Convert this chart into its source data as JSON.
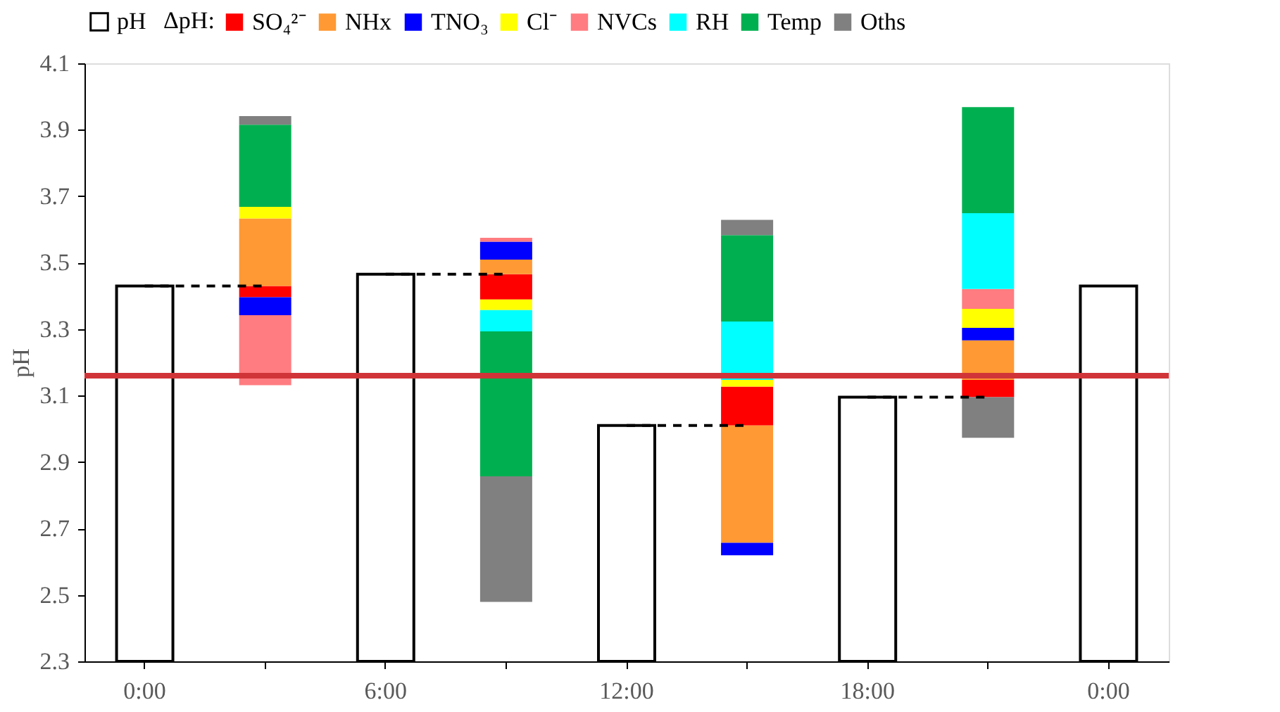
{
  "chart_data": {
    "type": "bar",
    "ylabel": "pH",
    "legend_title": "ΔpH:",
    "categories": [
      "0:00",
      null,
      "6:00",
      null,
      "12:00",
      null,
      "18:00",
      null,
      "0:00"
    ],
    "series": [
      {
        "name": "pH",
        "color": "#ffffff",
        "values": [
          3.43,
          null,
          3.465,
          null,
          3.01,
          null,
          3.095,
          null,
          3.43
        ]
      },
      {
        "name": "SO₄²⁻",
        "color": "#ff0000",
        "values": [
          null,
          -0.034,
          null,
          -0.076,
          null,
          0.117,
          null,
          0.052,
          null
        ],
        "base": [
          null,
          3.43,
          null,
          3.465,
          null,
          3.01,
          null,
          3.095,
          null
        ]
      },
      {
        "name": "NHx",
        "color": "#ff9933",
        "values": [
          null,
          0.203,
          null,
          0.044,
          null,
          -0.353,
          null,
          0.119,
          null
        ],
        "base": [
          null,
          3.43,
          null,
          3.465,
          null,
          3.01,
          null,
          3.147,
          null
        ]
      },
      {
        "name": "TNO₃",
        "color": "#0000ff",
        "values": [
          null,
          -0.054,
          null,
          0.054,
          null,
          -0.038,
          null,
          0.038,
          null
        ],
        "base": [
          null,
          3.396,
          null,
          3.509,
          null,
          2.657,
          null,
          3.266,
          null
        ]
      },
      {
        "name": "Cl⁻",
        "color": "#ffff00",
        "values": [
          null,
          0.035,
          null,
          -0.032,
          null,
          0.02,
          null,
          0.057,
          null
        ],
        "base": [
          null,
          3.633,
          null,
          3.389,
          null,
          3.127,
          null,
          3.304,
          null
        ]
      },
      {
        "name": "NVCs",
        "color": "#ff7c80",
        "values": [
          null,
          -0.211,
          null,
          0.012,
          null,
          null,
          null,
          0.06,
          null
        ],
        "base": [
          null,
          3.342,
          null,
          3.563,
          null,
          null,
          null,
          3.361,
          null
        ]
      },
      {
        "name": "RH",
        "color": "#00ffff",
        "values": [
          null,
          null,
          null,
          -0.064,
          null,
          0.176,
          null,
          0.228,
          null
        ],
        "base": [
          null,
          null,
          null,
          3.357,
          null,
          3.147,
          null,
          3.421,
          null
        ]
      },
      {
        "name": "Temp",
        "color": "#00b050",
        "values": [
          null,
          0.247,
          null,
          -0.436,
          null,
          0.26,
          null,
          0.319,
          null
        ],
        "base": [
          null,
          3.668,
          null,
          3.293,
          null,
          3.323,
          null,
          3.649,
          null
        ]
      },
      {
        "name": "Oths",
        "color": "#808080",
        "values": [
          null,
          0.026,
          null,
          -0.378,
          null,
          0.046,
          null,
          -0.122,
          null
        ],
        "base": [
          null,
          3.915,
          null,
          2.857,
          null,
          3.583,
          null,
          3.095,
          null
        ]
      },
      {
        "type": "line",
        "color": "#000000",
        "line_style": "dashed",
        "values": [
          3.43,
          3.43,
          null,
          null,
          null,
          null,
          null,
          null,
          null
        ]
      },
      {
        "type": "line",
        "color": "#000000",
        "line_style": "dashed",
        "values": [
          null,
          null,
          3.465,
          3.465,
          null,
          null,
          null,
          null,
          null
        ]
      },
      {
        "type": "line",
        "color": "#000000",
        "line_style": "dashed",
        "values": [
          null,
          null,
          null,
          null,
          3.01,
          3.01,
          null,
          null,
          null
        ]
      },
      {
        "type": "line",
        "color": "#000000",
        "line_style": "dashed",
        "values": [
          null,
          null,
          null,
          null,
          null,
          null,
          3.095,
          3.095,
          null
        ]
      }
    ],
    "ylim": [
      2.3,
      4.1
    ],
    "yticks": [
      2.3,
      2.5,
      2.7,
      2.9,
      3.1,
      3.3,
      3.5,
      3.7,
      3.9,
      4.1
    ],
    "ref_lines": [
      {
        "axis": "y",
        "value": 3.16,
        "color": "#d13438"
      }
    ],
    "grid": false,
    "legend": "top"
  }
}
